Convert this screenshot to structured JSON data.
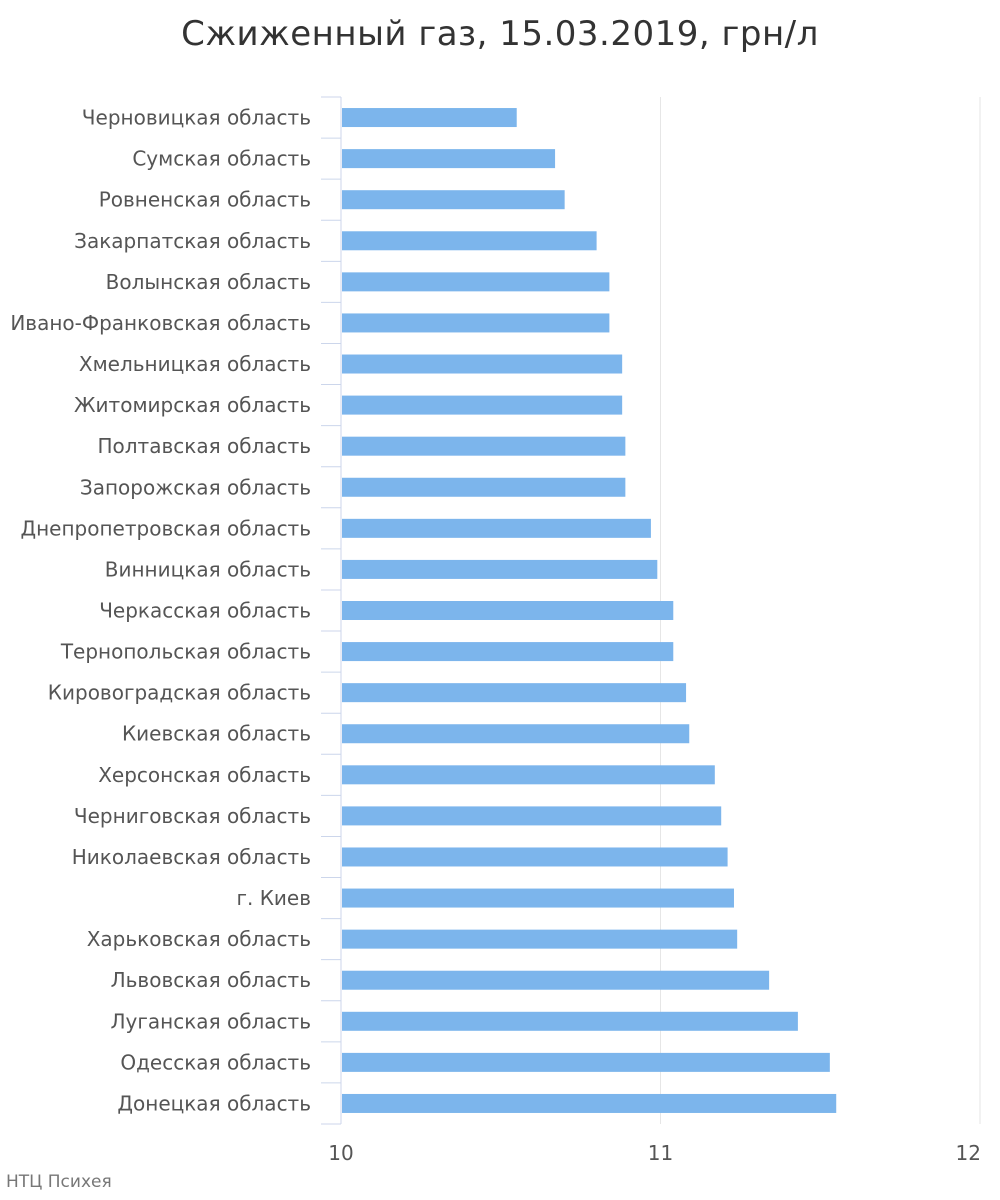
{
  "chart_data": {
    "type": "bar",
    "orientation": "horizontal",
    "title": "Сжиженный газ, 15.03.2019, грн/л",
    "xlabel": "",
    "ylabel": "",
    "xlim": [
      10,
      12
    ],
    "xticks": [
      "10",
      "11",
      "12"
    ],
    "grid": true,
    "bar_color": "#7cb5ec",
    "categories": [
      "Черновицкая область",
      "Сумская область",
      "Ровненская область",
      "Закарпатская область",
      "Волынская область",
      "Ивано-Франковская область",
      "Хмельницкая область",
      "Житомирская область",
      "Полтавская область",
      "Запорожская область",
      "Днепропетровская область",
      "Винницкая область",
      "Черкасская область",
      "Тернопольская область",
      "Кировоградская область",
      "Киевская область",
      "Херсонская область",
      "Черниговская область",
      "Николаевская область",
      "г. Киев",
      "Харьковская область",
      "Львовская область",
      "Луганская область",
      "Одесская область",
      "Донецкая область"
    ],
    "values": [
      10.55,
      10.67,
      10.7,
      10.8,
      10.84,
      10.84,
      10.88,
      10.88,
      10.89,
      10.89,
      10.97,
      10.99,
      11.04,
      11.04,
      11.08,
      11.09,
      11.17,
      11.19,
      11.21,
      11.23,
      11.24,
      11.34,
      11.43,
      11.53,
      11.55
    ]
  },
  "credit": "НТЦ Психея"
}
